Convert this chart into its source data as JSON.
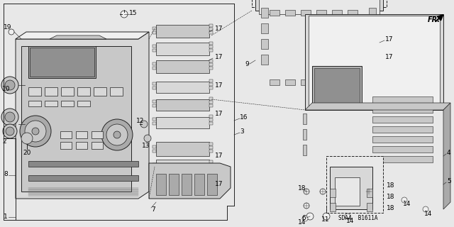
{
  "background_color": "#e8e8e8",
  "diagram_code": "SDA4 B1611A",
  "direction_label": "FR.",
  "fig_width": 6.4,
  "fig_height": 3.2,
  "dpi": 100,
  "line_color": "#222222",
  "text_color": "#000000",
  "gray_fill": "#c8c8c8",
  "dark_fill": "#aaaaaa",
  "light_fill": "#d8d8d8",
  "white_fill": "#f0f0f0",
  "font_size": 6.5
}
